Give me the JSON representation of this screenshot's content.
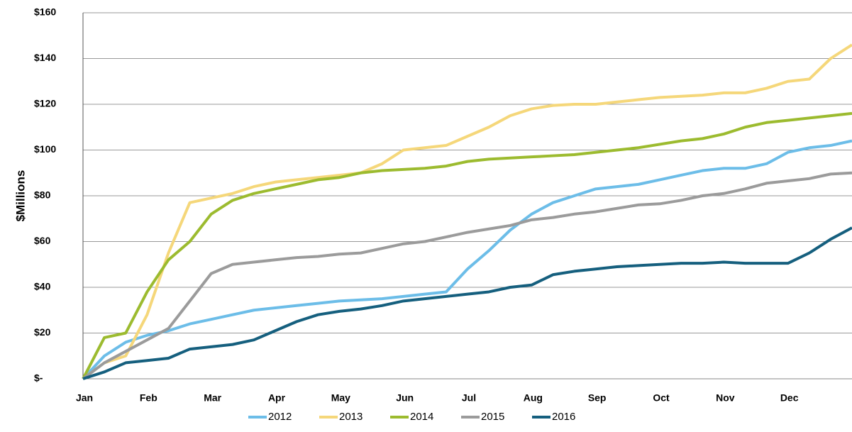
{
  "chart_data": {
    "type": "line",
    "y_label": "$Millions",
    "categories": [
      "Jan",
      null,
      null,
      "Feb",
      null,
      null,
      "Mar",
      null,
      null,
      "Apr",
      null,
      null,
      "May",
      null,
      null,
      "Jun",
      null,
      null,
      "Jul",
      null,
      null,
      "Aug",
      null,
      null,
      "Sep",
      null,
      null,
      "Oct",
      null,
      null,
      "Nov",
      null,
      null,
      "Dec",
      null,
      null,
      null
    ],
    "series": [
      {
        "name": "2012",
        "color": "#6cbde8",
        "values": [
          0,
          10,
          16,
          19,
          21,
          24,
          26,
          28,
          30,
          31,
          32,
          33,
          34,
          34.5,
          35,
          36,
          37,
          38,
          48,
          56,
          65,
          72,
          77,
          80,
          83,
          84,
          85,
          87,
          89,
          91,
          92,
          92,
          94,
          99,
          101,
          102,
          104
        ]
      },
      {
        "name": "2013",
        "color": "#f5d77a",
        "values": [
          0,
          7,
          10,
          28,
          55,
          77,
          79,
          81,
          84,
          86,
          87,
          88,
          89,
          90,
          94,
          100,
          101,
          102,
          106,
          110,
          115,
          118,
          119.5,
          120,
          120,
          121,
          122,
          123,
          123.5,
          124,
          125,
          125,
          127,
          130,
          131,
          140,
          146
        ]
      },
      {
        "name": "2014",
        "color": "#9cbb2f",
        "values": [
          0,
          18,
          20,
          38,
          52,
          60,
          72,
          78,
          81,
          83,
          85,
          87,
          88,
          90,
          91,
          91.5,
          92,
          93,
          95,
          96,
          96.5,
          97,
          97.5,
          98,
          99,
          100,
          101,
          102.5,
          104,
          105,
          107,
          110,
          112,
          113,
          114,
          115,
          116
        ]
      },
      {
        "name": "2015",
        "color": "#9b9b9b",
        "values": [
          0,
          7,
          12,
          17,
          22,
          34,
          46,
          50,
          51,
          52,
          53,
          53.5,
          54.5,
          55,
          57,
          59,
          60,
          62,
          64,
          65.5,
          67,
          69.5,
          70.5,
          72,
          73,
          74.5,
          76,
          76.5,
          78,
          80,
          81,
          83,
          85.5,
          86.5,
          87.5,
          89.5,
          90
        ]
      },
      {
        "name": "2016",
        "color": "#155f7e",
        "values": [
          0,
          3,
          7,
          8,
          9,
          13,
          14,
          15,
          17,
          21,
          25,
          28,
          29.5,
          30.5,
          32,
          34,
          35,
          36,
          37,
          38,
          40,
          41,
          45.5,
          47,
          48,
          49,
          49.5,
          50,
          50.5,
          50.5,
          51,
          50.5,
          50.5,
          50.5,
          55,
          61,
          66
        ]
      }
    ],
    "ylim": [
      0,
      160
    ],
    "yticks": [
      {
        "value": 0,
        "label": "$-"
      },
      {
        "value": 20,
        "label": "$20"
      },
      {
        "value": 40,
        "label": "$40"
      },
      {
        "value": 60,
        "label": "$60"
      },
      {
        "value": 80,
        "label": "$80"
      },
      {
        "value": 100,
        "label": "$100"
      },
      {
        "value": 120,
        "label": "$120"
      },
      {
        "value": 140,
        "label": "$140"
      },
      {
        "value": 160,
        "label": "$160"
      }
    ],
    "grid": true,
    "legend": "bottom"
  }
}
